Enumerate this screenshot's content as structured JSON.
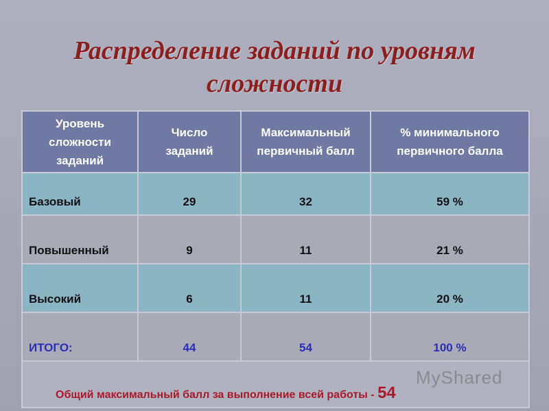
{
  "title": {
    "line1": "Распределение заданий  по уровням",
    "line2": "сложности"
  },
  "table": {
    "headers": [
      "Уровень сложности заданий",
      "Число заданий",
      "Максимальный первичный балл",
      "% минимального первичного балла"
    ],
    "rows": [
      [
        "Базовый",
        "29",
        "32",
        "59 %"
      ],
      [
        "Повышенный",
        "9",
        "11",
        "21 %"
      ],
      [
        "Высокий",
        "6",
        "11",
        "20 %"
      ],
      [
        "ИТОГО:",
        "44",
        "54",
        "100 %"
      ]
    ],
    "footer_label": "Общий  максимальный  балл  за  выполнение  всей  работы  -",
    "footer_value": "54"
  },
  "watermark": "MyShared"
}
